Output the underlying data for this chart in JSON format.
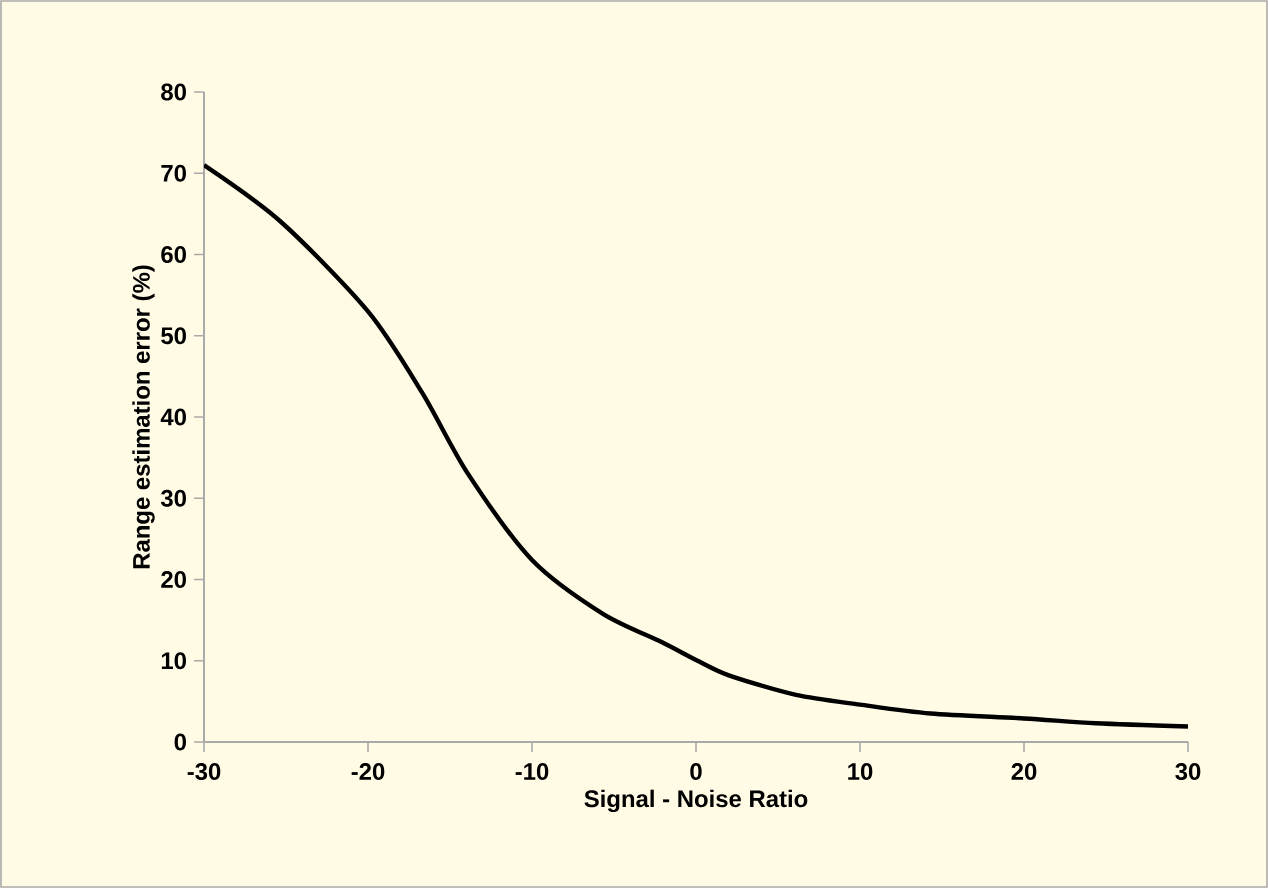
{
  "chart_data": {
    "type": "line",
    "xlabel": "Signal - Noise Ratio",
    "ylabel": "Range estimation error (%)",
    "x": [
      -30,
      -25.3,
      -20,
      -16.7,
      -13.9,
      -10,
      -5.7,
      -2.1,
      0,
      2,
      6.1,
      10,
      14.3,
      20,
      24.4,
      30
    ],
    "values": [
      71,
      64,
      53,
      43,
      33,
      22.4,
      15.8,
      12.3,
      10.1,
      8.2,
      5.8,
      4.6,
      3.5,
      2.9,
      2.3,
      1.9
    ],
    "color": "#000000",
    "xlim": [
      -30,
      30
    ],
    "ylim": [
      0,
      80
    ],
    "xticks": [
      -30,
      -20,
      -10,
      0,
      10,
      20,
      30
    ],
    "yticks": [
      0,
      10,
      20,
      30,
      40,
      50,
      60,
      70,
      80
    ],
    "grid": false,
    "marker": "none",
    "line_style": "solid"
  }
}
